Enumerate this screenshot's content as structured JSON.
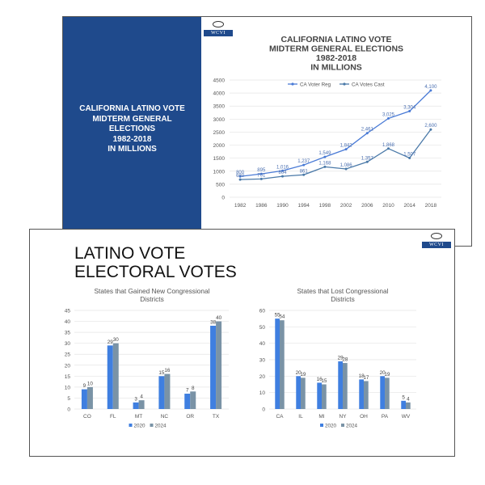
{
  "slide1": {
    "sidebar_text": "CALIFORNIA LATINO VOTE\nMIDTERM GENERAL\nELECTIONS\n1982-2018\nIN MILLIONS",
    "logo_text": "WCVI",
    "sidebar_color": "#1f4a8c"
  },
  "slide2": {
    "title": "LATINO VOTE\nELECTORAL VOTES",
    "logo_text": "WCVI"
  },
  "chart_data": [
    {
      "type": "line",
      "title": "CALIFORNIA LATINO VOTE MIDTERM GENERAL ELECTIONS 1982-2018 IN MILLIONS",
      "title_lines": [
        "CALIFORNIA LATINO VOTE",
        "MIDTERM GENERAL ELECTIONS",
        "1982-2018",
        "IN MILLIONS"
      ],
      "x": [
        "1982",
        "1986",
        "1990",
        "1994",
        "1998",
        "2002",
        "2006",
        "2010",
        "2014",
        "2018"
      ],
      "ylim": [
        0,
        4500
      ],
      "yticks": [
        0,
        500,
        1000,
        1500,
        2000,
        2500,
        3000,
        3500,
        4000,
        4500
      ],
      "grid": true,
      "legend_position": "top",
      "series": [
        {
          "name": "CA Voter Reg",
          "color": "#4a7bd6",
          "values": [
            800,
            895,
            1016,
            1237,
            1549,
            1842,
            2461,
            3025,
            3304,
            4100
          ],
          "labels": [
            "800",
            "895",
            "1,016",
            "1,237",
            "1,549",
            "1,842",
            "2,461",
            "3,025",
            "3,304",
            "4,100"
          ]
        },
        {
          "name": "CA Votes Cast",
          "color": "#4a79a8",
          "values": [
            680,
            701,
            804,
            861,
            1168,
            1086,
            1357,
            1868,
            1507,
            2600
          ],
          "labels": [
            "680",
            "701",
            "804",
            "861",
            "1,168",
            "1,086",
            "1,357",
            "1,868",
            "1,507",
            "2,600"
          ]
        }
      ]
    },
    {
      "type": "bar",
      "title": "States that Gained New Congressional Districts",
      "title_lines": [
        "States that Gained New Congressional",
        "Districts"
      ],
      "categories": [
        "CO",
        "FL",
        "MT",
        "NC",
        "OR",
        "TX"
      ],
      "ylim": [
        0,
        45
      ],
      "yticks": [
        0,
        5,
        10,
        15,
        20,
        25,
        30,
        35,
        40,
        45
      ],
      "grid": true,
      "legend_position": "bottom",
      "series": [
        {
          "name": "2020",
          "color": "#3f7fe0",
          "values": [
            9,
            29,
            3,
            15,
            7,
            38
          ]
        },
        {
          "name": "2024",
          "color": "#7a93a6",
          "values": [
            10,
            30,
            4,
            16,
            8,
            40
          ]
        }
      ]
    },
    {
      "type": "bar",
      "title": "States that Lost Congressional Districts",
      "title_lines": [
        "States that Lost Congressional",
        "Districts"
      ],
      "categories": [
        "CA",
        "IL",
        "MI",
        "NY",
        "OH",
        "PA",
        "WV"
      ],
      "ylim": [
        0,
        60
      ],
      "yticks": [
        0,
        10,
        20,
        30,
        40,
        50,
        60
      ],
      "grid": true,
      "legend_position": "bottom",
      "series": [
        {
          "name": "2020",
          "color": "#3f7fe0",
          "values": [
            55,
            20,
            16,
            29,
            18,
            20,
            5
          ]
        },
        {
          "name": "2024",
          "color": "#7a93a6",
          "values": [
            54,
            19,
            15,
            28,
            17,
            19,
            4
          ]
        }
      ]
    }
  ]
}
